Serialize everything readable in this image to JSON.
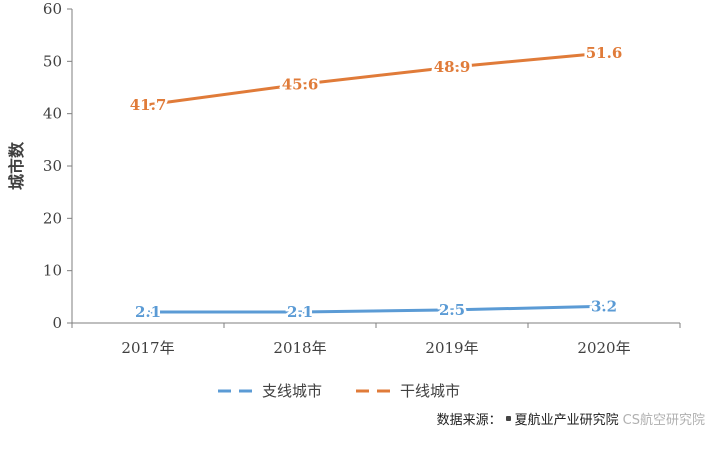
{
  "chart_data": {
    "type": "line",
    "categories": [
      "2017年",
      "2018年",
      "2019年",
      "2020年"
    ],
    "series": [
      {
        "name": "支线城市",
        "values": [
          2.1,
          2.1,
          2.5,
          3.2
        ],
        "color": "#5b9bd5"
      },
      {
        "name": "干线城市",
        "values": [
          41.7,
          45.6,
          48.9,
          51.6
        ],
        "color": "#e07b39"
      }
    ],
    "ylabel": "城市数",
    "ylim": [
      0,
      60
    ],
    "yticks": [
      0,
      10,
      20,
      30,
      40,
      50,
      60
    ],
    "grid": false,
    "legend_position": "bottom"
  },
  "source": {
    "label": "数据来源：",
    "text": "夏航业产业研究院"
  },
  "watermark": {
    "text": "CS航空研究院"
  },
  "colors": {
    "axis": "#7f7f7f",
    "text": "#404040"
  }
}
